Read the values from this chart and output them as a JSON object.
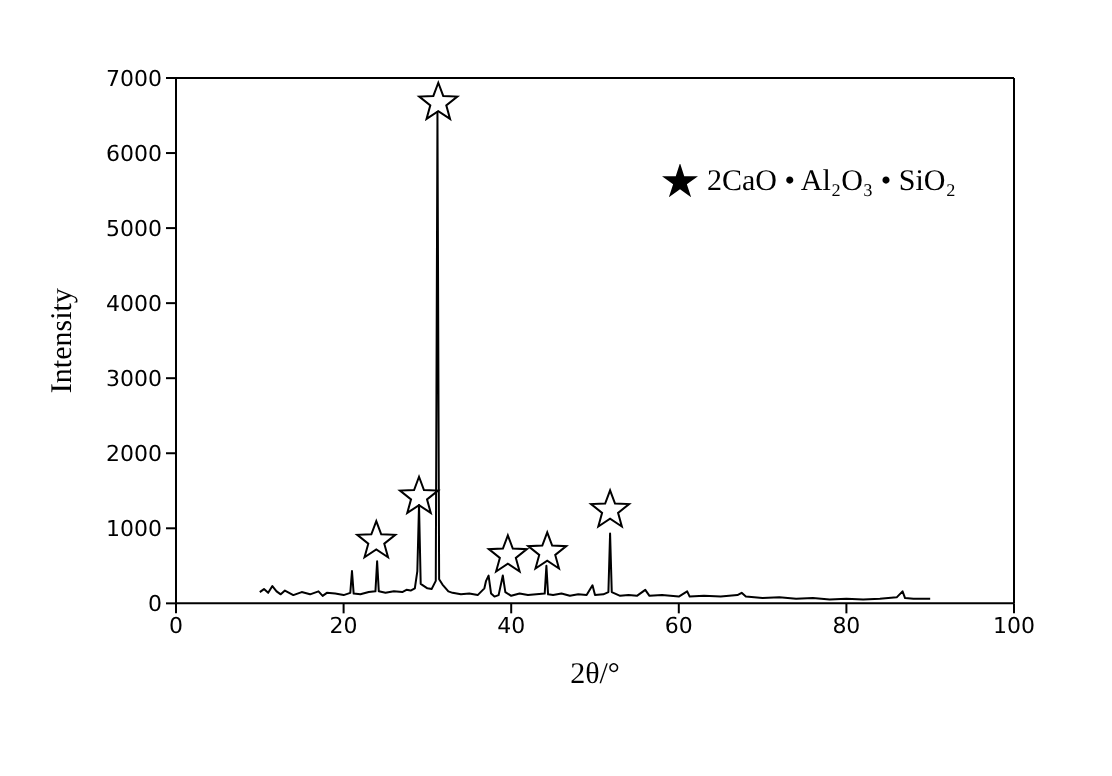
{
  "chart_data": {
    "type": "line",
    "xlabel": "2θ/°",
    "ylabel": "Intensity",
    "xlim": [
      0,
      100
    ],
    "xticks": [
      0,
      20,
      40,
      60,
      80,
      100
    ],
    "ylim": [
      0,
      7000
    ],
    "yticks": [
      0,
      1000,
      2000,
      3000,
      4000,
      5000,
      6000,
      7000
    ],
    "legend": "top right",
    "series": [
      {
        "color": "#000000",
        "marker": "none",
        "x": [
          10,
          10.5,
          11,
          11.5,
          12,
          12.5,
          13,
          14,
          15,
          16,
          17,
          17.5,
          18,
          19,
          20,
          20.8,
          21,
          21.2,
          22,
          23,
          23.8,
          24,
          24.2,
          25,
          26,
          27,
          27.5,
          28,
          28.5,
          28.8,
          29,
          29.2,
          30,
          30.5,
          31,
          31.2,
          31.4,
          31.8,
          32.5,
          33,
          34,
          35,
          36,
          36.8,
          37,
          37.3,
          37.6,
          38,
          38.5,
          39,
          39.3,
          40,
          41,
          42,
          43,
          44,
          44.2,
          44.4,
          45,
          46,
          47,
          48,
          49,
          49.7,
          50,
          51,
          51.6,
          51.8,
          52,
          53,
          54,
          55,
          56,
          56.5,
          58,
          60,
          61,
          61.3,
          63,
          65,
          67,
          67.5,
          68,
          70,
          72,
          74,
          76,
          78,
          80,
          82,
          84,
          86,
          86.7,
          87,
          88,
          90
        ],
        "values": [
          150,
          190,
          140,
          230,
          160,
          120,
          170,
          110,
          150,
          120,
          160,
          100,
          140,
          130,
          110,
          140,
          430,
          130,
          120,
          150,
          160,
          560,
          160,
          140,
          160,
          150,
          180,
          170,
          200,
          430,
          1310,
          260,
          200,
          190,
          300,
          6550,
          320,
          250,
          160,
          140,
          120,
          130,
          110,
          200,
          300,
          370,
          130,
          90,
          110,
          370,
          150,
          100,
          130,
          110,
          120,
          130,
          500,
          120,
          110,
          130,
          100,
          120,
          110,
          240,
          110,
          120,
          150,
          930,
          150,
          100,
          110,
          100,
          180,
          100,
          110,
          90,
          160,
          90,
          100,
          90,
          110,
          140,
          90,
          70,
          80,
          60,
          70,
          50,
          60,
          50,
          60,
          80,
          160,
          70,
          60,
          60
        ]
      },
      {
        "type": "scatter",
        "name": "2CaO • Al₂O₃ • SiO₂",
        "color": "#000000",
        "marker": "star",
        "x": [
          23.9,
          29,
          31.3,
          39.6,
          44.3,
          51.8
        ],
        "values": [
          830,
          1420,
          6670,
          640,
          680,
          1240
        ]
      }
    ]
  }
}
